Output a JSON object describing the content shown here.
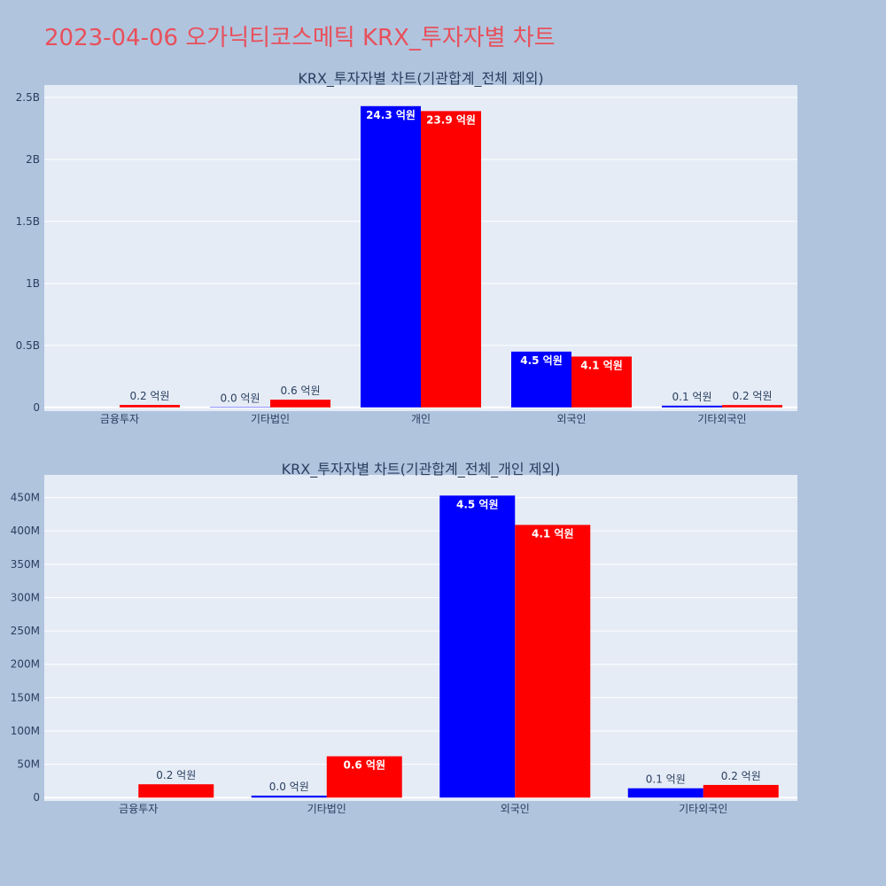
{
  "title": "2023-04-06 오가닉티코스메틱 KRX_투자자별 차트",
  "colors": {
    "buy": "#0000ff",
    "sell": "#ff0000",
    "title": "#e8505b"
  },
  "chart_data": [
    {
      "type": "bar",
      "title": "KRX_투자자별 차트(기관합계_전체 제외)",
      "categories": [
        "금융투자",
        "기타법인",
        "개인",
        "외국인",
        "기타외국인"
      ],
      "series": [
        {
          "values": [
            0,
            3000000,
            2430000000,
            450000000,
            14000000
          ],
          "labels": [
            "",
            "0.0 억원",
            "24.3 억원",
            "4.5 억원",
            "0.1 억원"
          ]
        },
        {
          "values": [
            20000000,
            62000000,
            2390000000,
            410000000,
            19000000
          ],
          "labels": [
            "0.2 억원",
            "0.6 억원",
            "23.9 억원",
            "4.1 억원",
            "0.2 억원"
          ]
        }
      ],
      "ylim": [
        -30000000,
        2600000000
      ],
      "yticks": [
        0,
        500000000,
        1000000000,
        1500000000,
        2000000000,
        2500000000
      ],
      "ytick_labels": [
        "0",
        "0.5B",
        "1B",
        "1.5B",
        "2B",
        "2.5B"
      ],
      "grid": true
    },
    {
      "type": "bar",
      "title": "KRX_투자자별 차트(기관합계_전체_개인 제외)",
      "categories": [
        "금융투자",
        "기타법인",
        "외국인",
        "기타외국인"
      ],
      "series": [
        {
          "values": [
            0,
            3000000,
            453000000,
            14000000
          ],
          "labels": [
            "",
            "0.0 억원",
            "4.5 억원",
            "0.1 억원"
          ]
        },
        {
          "values": [
            20000000,
            62000000,
            409000000,
            19000000
          ],
          "labels": [
            "0.2 억원",
            "0.6 억원",
            "4.1 억원",
            "0.2 억원"
          ]
        }
      ],
      "ylim": [
        -5000000,
        484000000
      ],
      "yticks": [
        0,
        50000000,
        100000000,
        150000000,
        200000000,
        250000000,
        300000000,
        350000000,
        400000000,
        450000000
      ],
      "ytick_labels": [
        "0",
        "50M",
        "100M",
        "150M",
        "200M",
        "250M",
        "300M",
        "350M",
        "400M",
        "450M"
      ],
      "grid": true
    }
  ]
}
